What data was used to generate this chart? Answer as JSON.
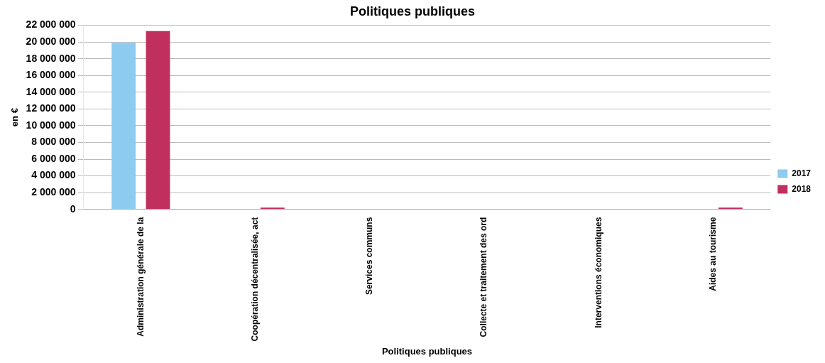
{
  "chart_data": {
    "type": "bar",
    "title": "Politiques publiques",
    "xlabel": "Politiques publiques",
    "ylabel": "en €",
    "categories": [
      "Administration générale de la",
      "Coopération décentralisée, act",
      "Services communs",
      "Collecte et traitement des ord",
      "Interventions économiques",
      "Aides au tourisme"
    ],
    "series": [
      {
        "name": "2017",
        "color": "#8ecbf0",
        "values": [
          19900000,
          0,
          0,
          0,
          0,
          0
        ]
      },
      {
        "name": "2018",
        "color": "#c0305f",
        "values": [
          21300000,
          200000,
          0,
          0,
          0,
          200000
        ]
      }
    ],
    "ylim": [
      0,
      22000000
    ],
    "yticks": [
      {
        "value": 0,
        "label": "0"
      },
      {
        "value": 2000000,
        "label": "2 000 000"
      },
      {
        "value": 4000000,
        "label": "4 000 000"
      },
      {
        "value": 6000000,
        "label": "6 000 000"
      },
      {
        "value": 8000000,
        "label": "8 000 000"
      },
      {
        "value": 10000000,
        "label": "10 000 000"
      },
      {
        "value": 12000000,
        "label": "12 000 000"
      },
      {
        "value": 14000000,
        "label": "14 000 000"
      },
      {
        "value": 16000000,
        "label": "16 000 000"
      },
      {
        "value": 18000000,
        "label": "18 000 000"
      },
      {
        "value": 20000000,
        "label": "20 000 000"
      },
      {
        "value": 22000000,
        "label": "22 000 000"
      }
    ],
    "grid": "y",
    "legend": "right"
  }
}
